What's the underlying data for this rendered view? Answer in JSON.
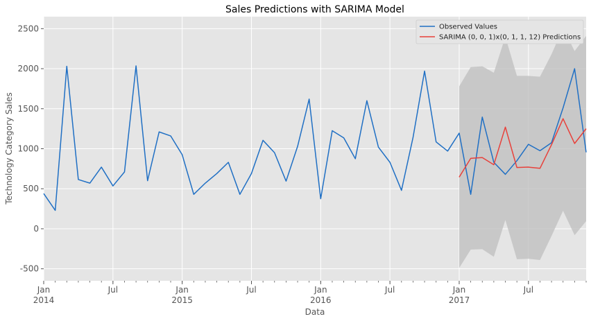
{
  "chart_data": {
    "type": "line",
    "title": "Sales Predictions with SARIMA Model",
    "xlabel": "Data",
    "ylabel": "Technology Category Sales",
    "ylim": [
      -650,
      2650
    ],
    "xlim": [
      "2014-01",
      "2017-12"
    ],
    "yticks": [
      -500,
      0,
      500,
      1000,
      1500,
      2000,
      2500
    ],
    "xticks": [
      {
        "date": "2014-01",
        "label": "Jan",
        "year": "2014"
      },
      {
        "date": "2014-07",
        "label": "Jul",
        "year": ""
      },
      {
        "date": "2015-01",
        "label": "Jan",
        "year": "2015"
      },
      {
        "date": "2015-07",
        "label": "Jul",
        "year": ""
      },
      {
        "date": "2016-01",
        "label": "Jan",
        "year": "2016"
      },
      {
        "date": "2016-07",
        "label": "Jul",
        "year": ""
      },
      {
        "date": "2017-01",
        "label": "Jan",
        "year": "2017"
      },
      {
        "date": "2017-07",
        "label": "Jul",
        "year": ""
      }
    ],
    "grid": true,
    "legend_position": "top-right",
    "series": [
      {
        "name": "Observed Values",
        "color": "#1f6fc4",
        "x": [
          "2014-01",
          "2014-02",
          "2014-03",
          "2014-04",
          "2014-05",
          "2014-06",
          "2014-07",
          "2014-08",
          "2014-09",
          "2014-10",
          "2014-11",
          "2014-12",
          "2015-01",
          "2015-02",
          "2015-03",
          "2015-04",
          "2015-05",
          "2015-06",
          "2015-07",
          "2015-08",
          "2015-09",
          "2015-10",
          "2015-11",
          "2015-12",
          "2016-01",
          "2016-02",
          "2016-03",
          "2016-04",
          "2016-05",
          "2016-06",
          "2016-07",
          "2016-08",
          "2016-09",
          "2016-10",
          "2016-11",
          "2016-12",
          "2017-01",
          "2017-02",
          "2017-03",
          "2017-04",
          "2017-05",
          "2017-06",
          "2017-07",
          "2017-08",
          "2017-09",
          "2017-10",
          "2017-11",
          "2017-12"
        ],
        "values": [
          440,
          230,
          2030,
          615,
          570,
          770,
          535,
          710,
          2035,
          600,
          1210,
          1160,
          925,
          430,
          570,
          690,
          830,
          430,
          690,
          1105,
          950,
          595,
          1030,
          1620,
          375,
          1225,
          1135,
          875,
          1600,
          1020,
          830,
          480,
          1140,
          1970,
          1085,
          970,
          1195,
          430,
          1395,
          830,
          680,
          850,
          1055,
          975,
          1075,
          1510,
          2000,
          955
        ]
      },
      {
        "name": "SARIMA (0, 0, 1)x(0, 1, 1, 12) Predictions",
        "color": "#e8403a",
        "x": [
          "2017-01",
          "2017-02",
          "2017-03",
          "2017-04",
          "2017-05",
          "2017-06",
          "2017-07",
          "2017-08",
          "2017-09",
          "2017-10",
          "2017-11",
          "2017-12"
        ],
        "values": [
          645,
          880,
          890,
          800,
          1270,
          765,
          770,
          755,
          1050,
          1375,
          1065,
          1250
        ]
      }
    ],
    "confidence_band": {
      "color": "#bdbdbd",
      "x": [
        "2017-01",
        "2017-02",
        "2017-03",
        "2017-04",
        "2017-05",
        "2017-06",
        "2017-07",
        "2017-08",
        "2017-09",
        "2017-10",
        "2017-11",
        "2017-12"
      ],
      "upper": [
        1780,
        2020,
        2030,
        1950,
        2400,
        1910,
        1910,
        1900,
        2180,
        2510,
        2220,
        2410
      ],
      "lower": [
        -490,
        -260,
        -255,
        -350,
        110,
        -380,
        -375,
        -390,
        -90,
        225,
        -80,
        95
      ]
    }
  }
}
